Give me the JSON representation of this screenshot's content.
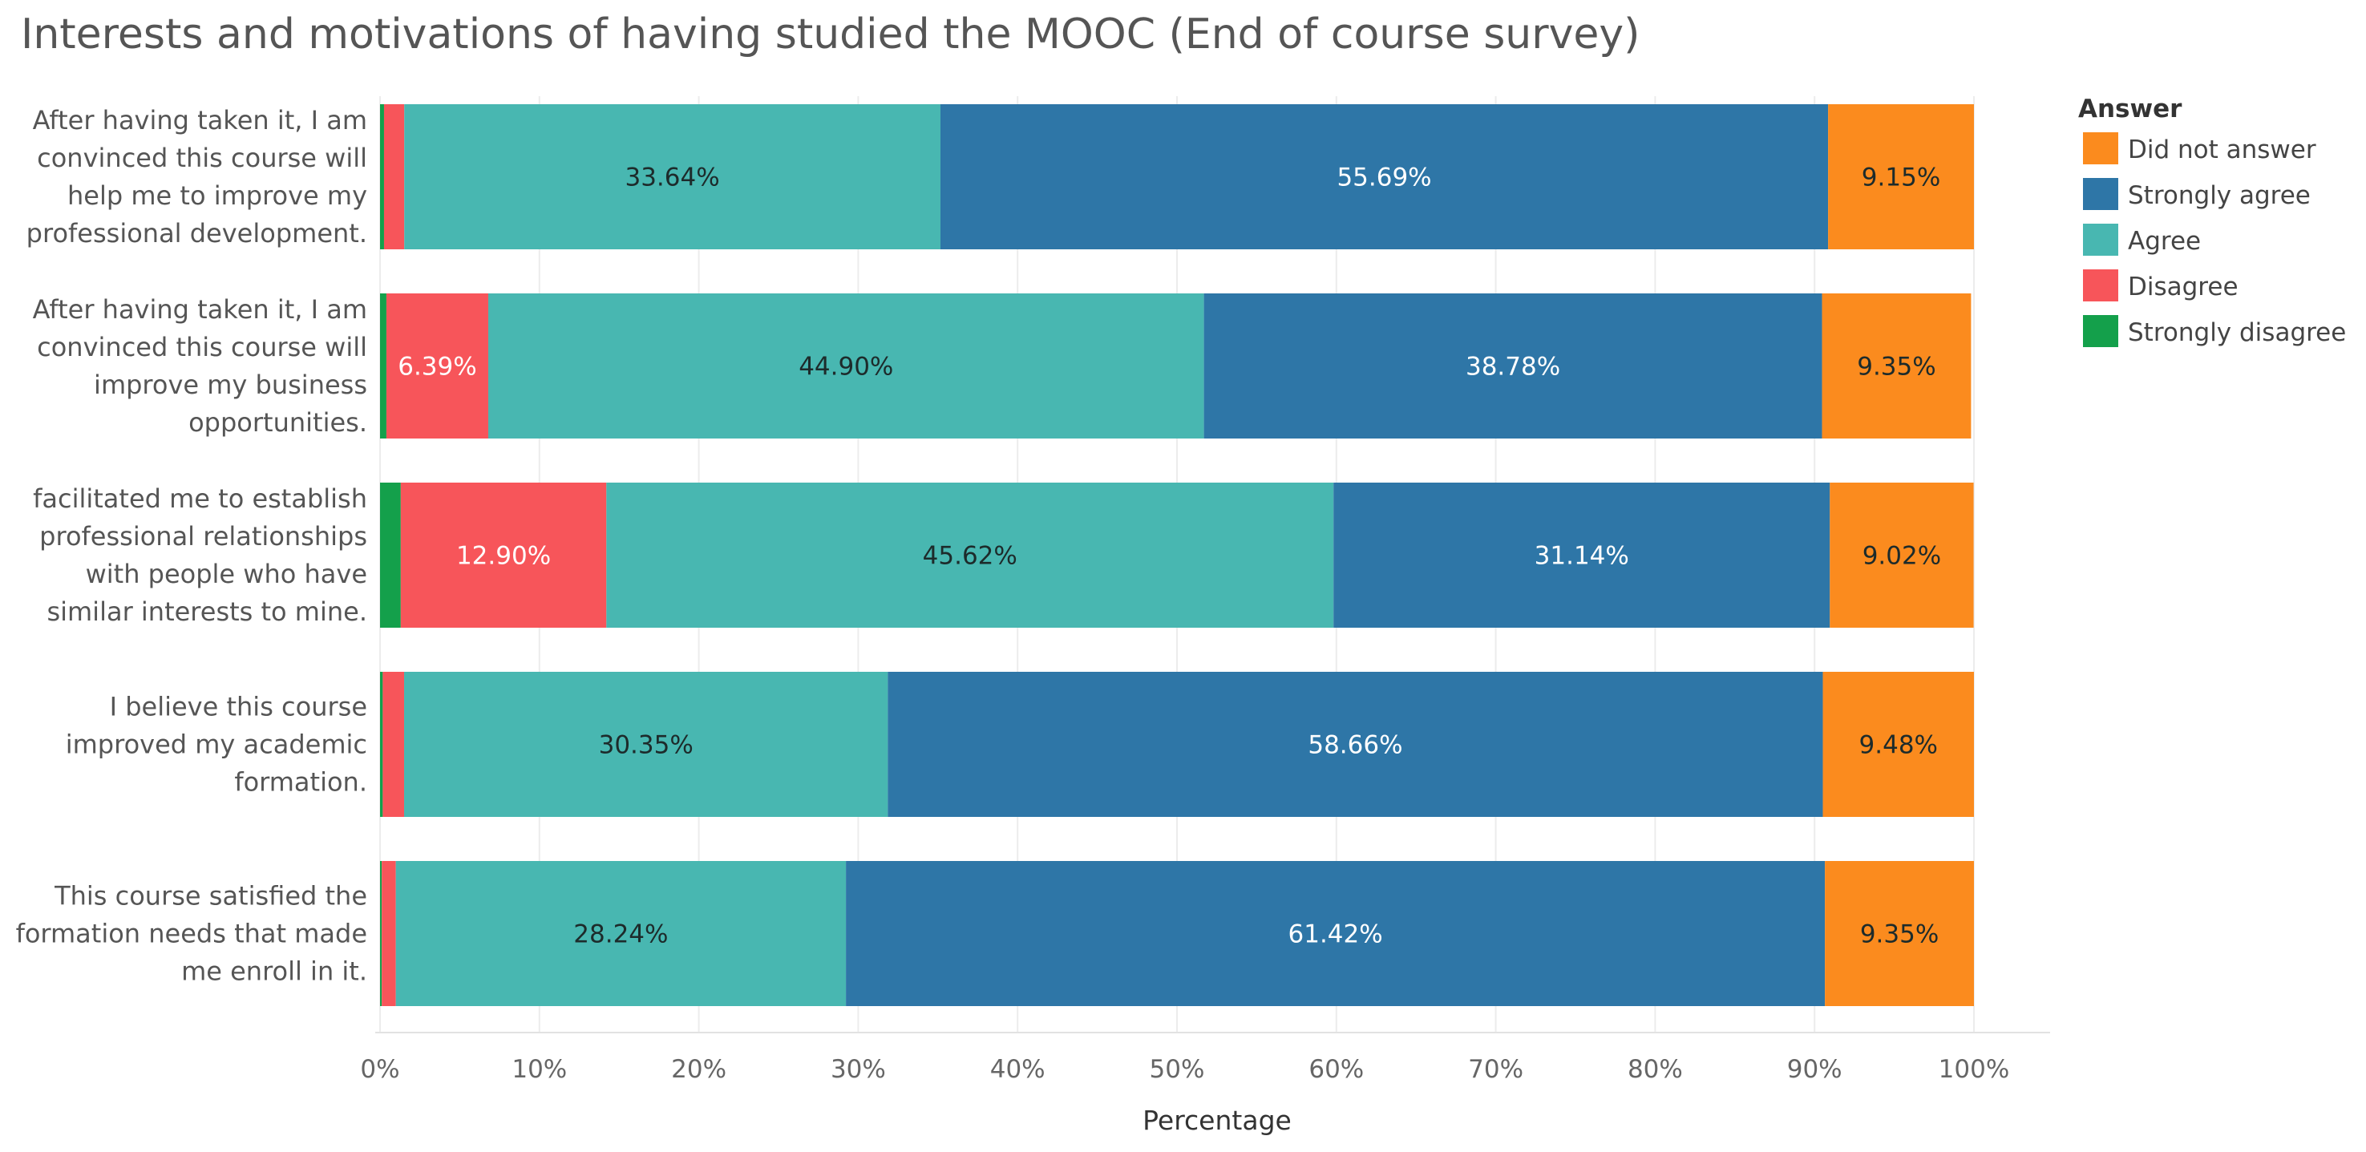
{
  "chart_data": {
    "type": "bar",
    "orientation": "horizontal",
    "stacked": true,
    "title": "Interests and motivations of having studied the MOOC (End of course survey)",
    "xlabel": "Percentage",
    "ylabel": "",
    "xlim": [
      0,
      100
    ],
    "x_tick_labels": [
      "0%",
      "10%",
      "20%",
      "30%",
      "40%",
      "50%",
      "60%",
      "70%",
      "80%",
      "90%",
      "100%"
    ],
    "grid": true,
    "legend_position": "right",
    "categories": [
      "After having taken it, I am convinced this course will help me to improve my professional development.",
      "After having taken it, I am convinced this course will improve my business opportunities.",
      "facilitated me to establish professional relationships with people who have similar interests to mine.",
      "I believe this course improved my academic formation.",
      "This course satisfied the formation needs that made me enroll in it."
    ],
    "category_label_lines": [
      [
        "After having taken it, I am",
        "convinced this course will",
        "help me to improve my",
        "professional development."
      ],
      [
        "After having taken it, I am",
        "convinced this course will",
        "improve my business",
        "opportunities."
      ],
      [
        "facilitated me to establish",
        "professional relationships",
        "with people who have",
        "similar interests to mine."
      ],
      [
        "I believe this course",
        "improved my academic",
        "formation."
      ],
      [
        "This course satisfied the",
        "formation needs that made",
        "me enroll in it."
      ]
    ],
    "legend": {
      "title": "Answer",
      "entries": [
        "Did not answer",
        "Strongly agree",
        "Agree",
        "Disagree",
        "Strongly disagree"
      ]
    },
    "series": [
      {
        "name": "Strongly disagree",
        "color": "#14a04b",
        "values": [
          0.25,
          0.4,
          1.3,
          0.17,
          0.11
        ],
        "labels": [
          "",
          "",
          "",
          "",
          ""
        ]
      },
      {
        "name": "Disagree",
        "color": "#f7555a",
        "values": [
          1.27,
          6.39,
          12.9,
          1.34,
          0.88
        ],
        "labels": [
          "",
          "6.39%",
          "12.90%",
          "",
          ""
        ]
      },
      {
        "name": "Agree",
        "color": "#48b7b1",
        "values": [
          33.64,
          44.9,
          45.62,
          30.35,
          28.24
        ],
        "labels": [
          "33.64%",
          "44.90%",
          "45.62%",
          "30.35%",
          "28.24%"
        ]
      },
      {
        "name": "Strongly agree",
        "color": "#2e76a7",
        "values": [
          55.69,
          38.78,
          31.14,
          58.66,
          61.42
        ],
        "labels": [
          "55.69%",
          "38.78%",
          "31.14%",
          "58.66%",
          "61.42%"
        ]
      },
      {
        "name": "Did not answer",
        "color": "#fb8b1e",
        "values": [
          9.15,
          9.35,
          9.02,
          9.48,
          9.35
        ],
        "labels": [
          "9.15%",
          "9.35%",
          "9.02%",
          "9.48%",
          "9.35%"
        ]
      }
    ]
  }
}
